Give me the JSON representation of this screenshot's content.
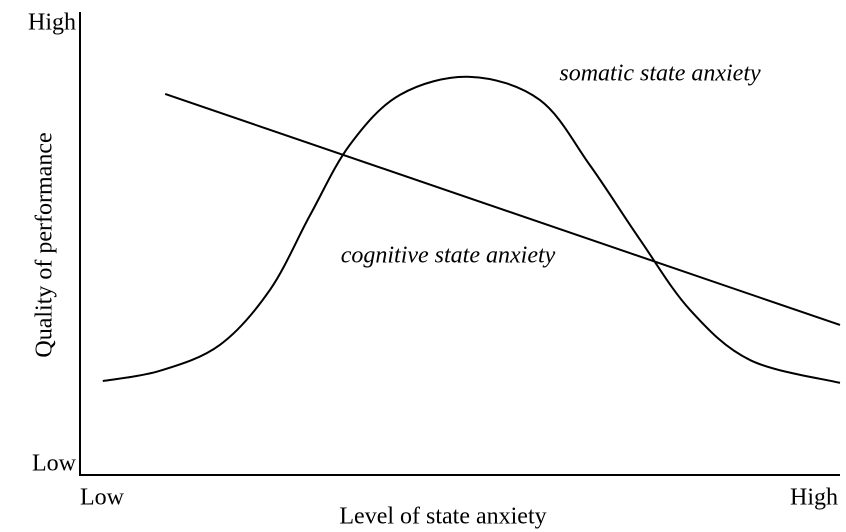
{
  "chart_data": {
    "type": "line",
    "x_label": "Level of state anxiety",
    "y_label": "Quality of performance",
    "xlim": [
      0,
      100
    ],
    "ylim": [
      0,
      100
    ],
    "xticks": [
      {
        "value": 0,
        "label": "Low"
      },
      {
        "value": 100,
        "label": "High"
      }
    ],
    "yticks": [
      {
        "value": 0,
        "label": "Low"
      },
      {
        "value": 100,
        "label": "High"
      }
    ],
    "series": [
      {
        "name": "somatic state anxiety",
        "color": "#000000",
        "x": [
          3,
          10.5,
          18.4,
          25,
          30.3,
          35.5,
          42.1,
          51.3,
          60.5,
          67.1,
          73.7,
          80.3,
          88.2,
          100
        ],
        "values": [
          20.3,
          22.5,
          28.1,
          40,
          56.2,
          71.3,
          82.1,
          86,
          81,
          66.9,
          50.8,
          35.6,
          24.8,
          19.9
        ]
      },
      {
        "name": "cognitive state anxiety",
        "color": "#000000",
        "x": [
          11.2,
          100
        ],
        "values": [
          82.3,
          32.4
        ]
      }
    ]
  }
}
